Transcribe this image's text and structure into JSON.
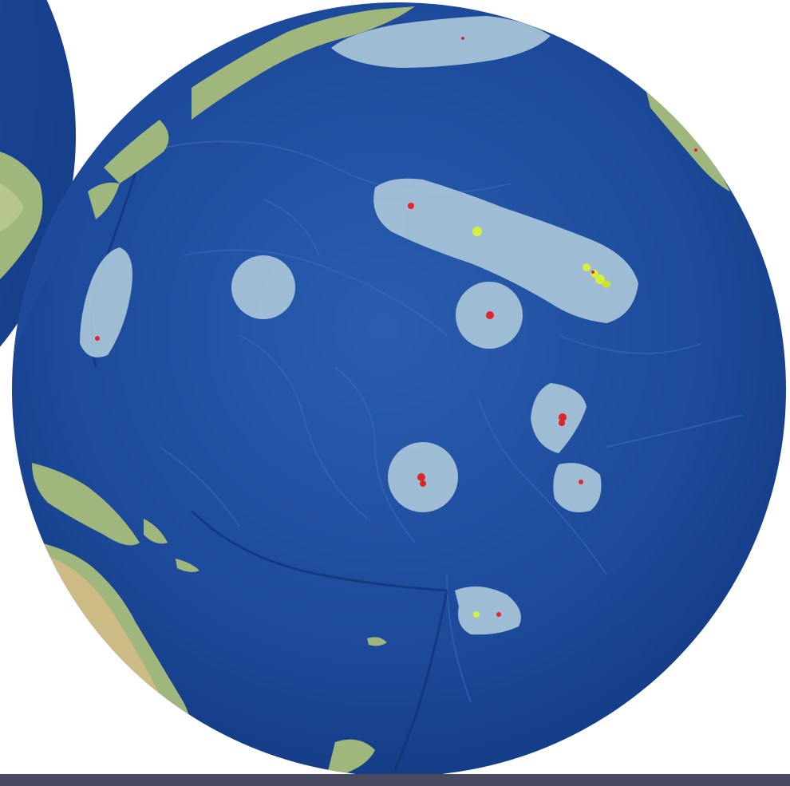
{
  "map": {
    "projection": "orthographic",
    "subject": "Pacific Ocean",
    "colors": {
      "ocean": "#1f4d9e",
      "ocean_deep": "#123a82",
      "land": "#9fb67d",
      "land_dry": "#cdbb86",
      "protected_zone": "#a9c6d8",
      "site_red": "#e0242b",
      "site_yellow": "#d6f03a",
      "background": "#ffffff",
      "bar": "#4a4a60"
    },
    "protected_zones": [
      {
        "id": "northwestern-hawaiian-chain"
      },
      {
        "id": "mariana-area"
      },
      {
        "id": "wake-area"
      },
      {
        "id": "johnston-area"
      },
      {
        "id": "kingman-palmyra-area"
      },
      {
        "id": "howland-baker-area"
      },
      {
        "id": "jarvis-area"
      },
      {
        "id": "american-samoa-area"
      },
      {
        "id": "aleutian-area"
      }
    ]
  }
}
